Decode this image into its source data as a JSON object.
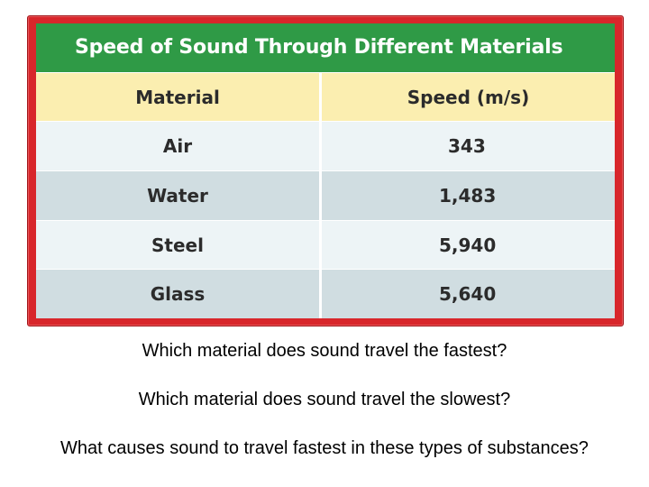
{
  "table": {
    "title": "Speed of Sound Through Different Materials",
    "headers": [
      "Material",
      "Speed (m/s)"
    ],
    "rows": [
      {
        "material": "Air",
        "speed": "343"
      },
      {
        "material": "Water",
        "speed": "1,483"
      },
      {
        "material": "Steel",
        "speed": "5,940"
      },
      {
        "material": "Glass",
        "speed": "5,640"
      }
    ],
    "colors": {
      "frame": "#d8262b",
      "title_bar": "#2f9a46",
      "header_row": "#fbeeb0",
      "row_light": "#edf4f6",
      "row_dark": "#d0dde1"
    }
  },
  "questions": [
    "Which material does sound travel the fastest?",
    "Which material does sound travel the slowest?",
    "What causes sound to travel fastest in these types of substances?"
  ]
}
